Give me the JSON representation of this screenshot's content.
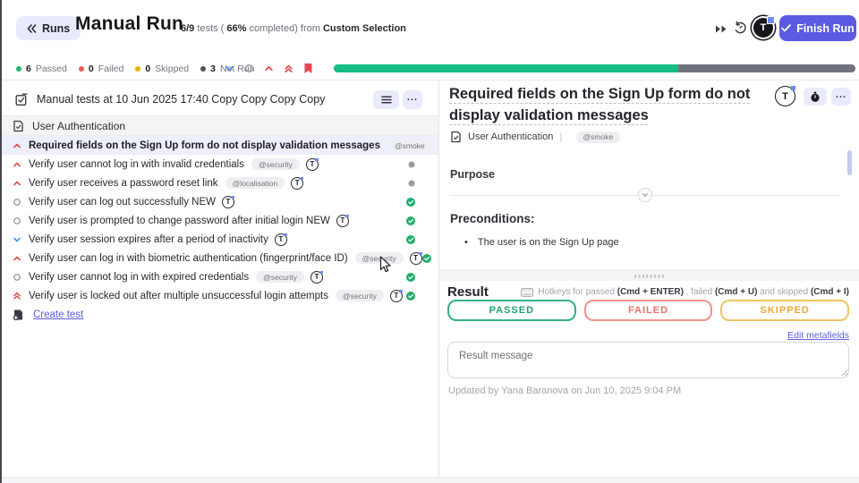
{
  "header": {
    "back_label": "Runs",
    "title": "Manual Run",
    "meta": {
      "tests": "6/9",
      "t1": " tests ( ",
      "pct": "66%",
      "t2": " completed) from ",
      "source": "Custom Selection"
    },
    "finish_label": "Finish Run",
    "avatar_initial": "T"
  },
  "stats": {
    "items": [
      {
        "count": "6",
        "label": "Passed",
        "color": "#22b573"
      },
      {
        "count": "0",
        "label": "Failed",
        "color": "#ee5b5b"
      },
      {
        "count": "0",
        "label": "Skipped",
        "color": "#eab308"
      },
      {
        "count": "3",
        "label": "Not Run",
        "color": "#52525b"
      }
    ],
    "progress": {
      "passed_pct": 66
    }
  },
  "run_panel": {
    "title": "Manual tests at 10 Jun 2025 17:40 Copy Copy Copy Copy",
    "group_label": "User Authentication",
    "create_test_label": "Create test",
    "assignee_initial": "T",
    "tests": [
      {
        "priority": "high",
        "title": "Required fields on the Sign Up form do not display validation messages",
        "tag": "@smoke",
        "status": "notrun",
        "selected": true
      },
      {
        "priority": "high",
        "title": "Verify user cannot log in with invalid credentials",
        "tag": "@security",
        "status": "notrun",
        "selected": false
      },
      {
        "priority": "high",
        "title": "Verify user receives a password reset link",
        "tag": "@localisation",
        "status": "notrun",
        "selected": false
      },
      {
        "priority": "normal",
        "title": "Verify user can log out successfully NEW",
        "tag": null,
        "status": "passed",
        "selected": false
      },
      {
        "priority": "normal",
        "title": "Verify user is prompted to change password after initial login NEW",
        "tag": null,
        "status": "passed",
        "selected": false
      },
      {
        "priority": "low",
        "title": "Verify user session expires after a period of inactivity",
        "tag": null,
        "status": "passed",
        "selected": false
      },
      {
        "priority": "high",
        "title": "Verify user can log in with biometric authentication (fingerprint/face ID)",
        "tag": "@security",
        "status": "passed",
        "selected": false
      },
      {
        "priority": "normal",
        "title": "Verify user cannot log in with expired credentials",
        "tag": "@security",
        "status": "passed",
        "selected": false
      },
      {
        "priority": "highest",
        "title": "Verify user is locked out after multiple unsuccessful login attempts",
        "tag": "@security",
        "status": "passed",
        "selected": false
      }
    ]
  },
  "detail": {
    "title": "Required fields on the Sign Up form do not display validation messages",
    "suite": "User Authentication",
    "tag": "@smoke",
    "purpose_label": "Purpose",
    "preconditions_label": "Preconditions:",
    "precondition_item": "The user is on the Sign Up page",
    "avatar_initial": "T"
  },
  "result": {
    "label": "Result",
    "hotkeys": [
      {
        "text": "Hotkeys for passed ",
        "bold": false
      },
      {
        "text": "(Cmd + ENTER)",
        "bold": true
      },
      {
        "text": " , failed ",
        "bold": false
      },
      {
        "text": "(Cmd + U)",
        "bold": true
      },
      {
        "text": " and skipped ",
        "bold": false
      },
      {
        "text": "(Cmd + I)",
        "bold": true
      }
    ],
    "buttons": {
      "passed": "PASSED",
      "failed": "FAILED",
      "skipped": "SKIPPED"
    },
    "edit_link": "Edit metafields",
    "message_placeholder": "Result message",
    "updated": "Updated by Yana Baranova on Jun 10, 2025 9:04 PM"
  },
  "colors": {
    "accent": "#5a5be0",
    "progress_green": "#17bd82",
    "progress_gray": "#71747e",
    "passed": "#1ea36c",
    "failed": "#ef6f68",
    "skipped": "#e5a93b",
    "priority_high": "#e5484d",
    "priority_low": "#4f8ef7"
  }
}
